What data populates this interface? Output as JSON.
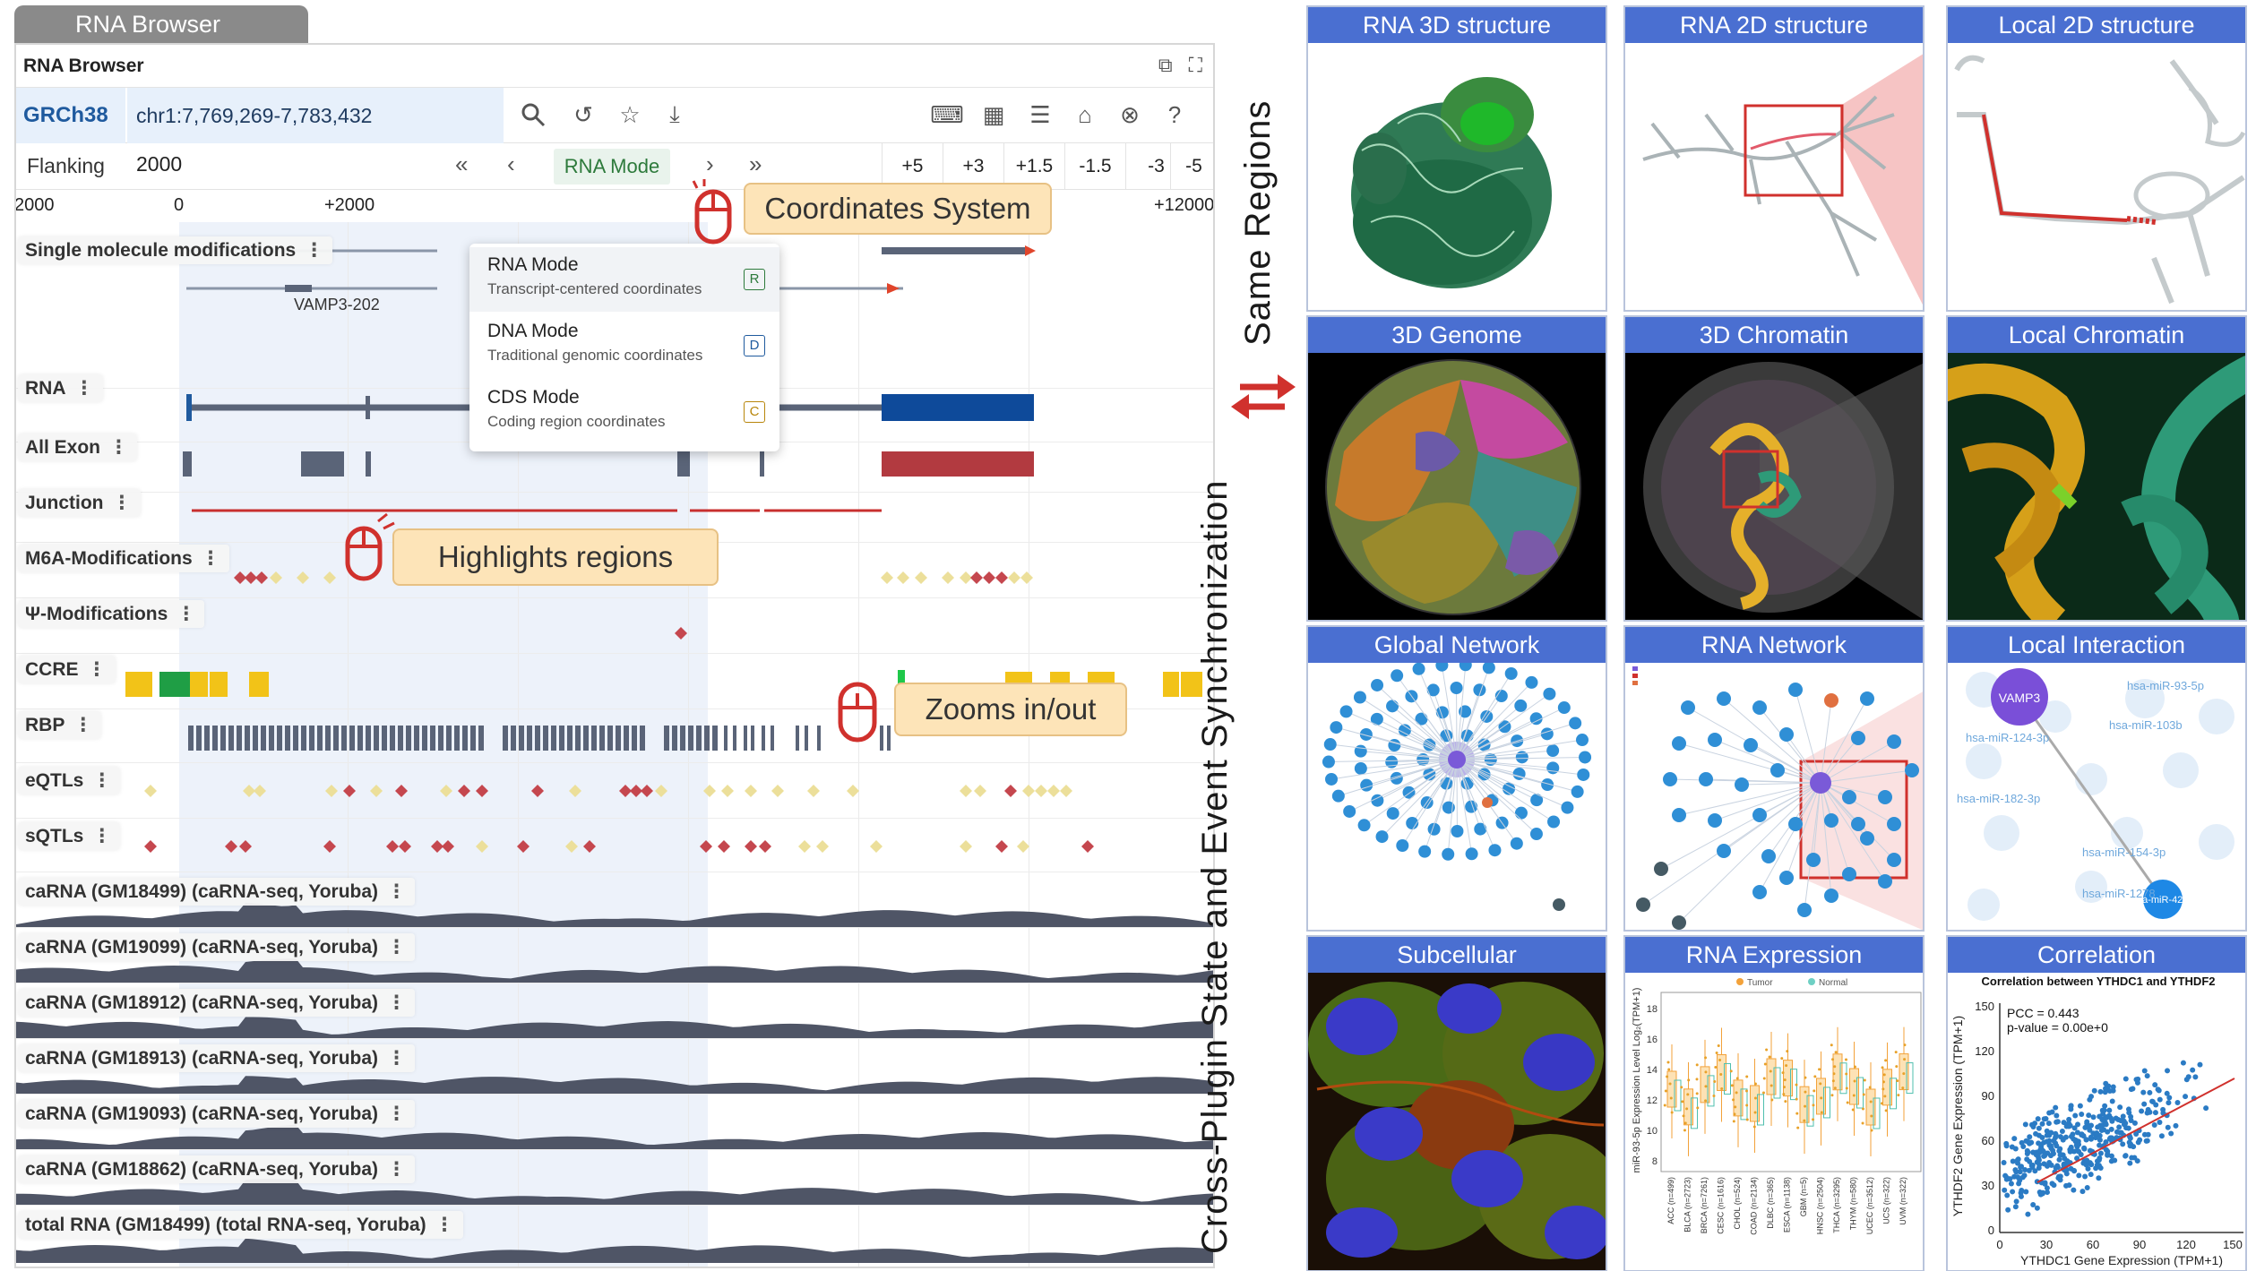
{
  "browser": {
    "tab_title": "RNA Browser",
    "window_title": "RNA Browser",
    "genome": "GRCh38",
    "coordinates": "chr1:7,769,269-7,783,432",
    "flanking_label": "Flanking",
    "flanking_value": "2000",
    "mode": "RNA Mode",
    "steps": [
      "+5",
      "+3",
      "+1.5",
      "-1.5",
      "-3",
      "-5"
    ],
    "ruler": [
      "2000",
      "0",
      "+2000",
      "+12000"
    ],
    "transcript_label": "VAMP3-202"
  },
  "mode_menu": [
    {
      "title": "RNA Mode",
      "subtitle": "Transcript-centered coordinates",
      "key": "R"
    },
    {
      "title": "DNA Mode",
      "subtitle": "Traditional genomic coordinates",
      "key": "D"
    },
    {
      "title": "CDS Mode",
      "subtitle": "Coding region coordinates",
      "key": "C"
    }
  ],
  "tracks": [
    "Single molecule modifications",
    "RNA",
    "All Exon",
    "Junction",
    "M6A-Modifications",
    "Ψ-Modifications",
    "CCRE",
    "RBP",
    "eQTLs",
    "sQTLs",
    "caRNA (GM18499) (caRNA-seq, Yoruba)",
    "caRNA (GM19099) (caRNA-seq, Yoruba)",
    "caRNA (GM18912) (caRNA-seq, Yoruba)",
    "caRNA (GM18913) (caRNA-seq, Yoruba)",
    "caRNA (GM19093) (caRNA-seq, Yoruba)",
    "caRNA (GM18862) (caRNA-seq, Yoruba)",
    "total RNA (GM18499) (total RNA-seq, Yoruba)"
  ],
  "callouts": {
    "coords": "Coordinates System",
    "highlight": "Highlights regions",
    "zoom": "Zooms in/out"
  },
  "sync_text": "Cross-Plugin State and Event Synchronization",
  "same_regions": "Same Regions",
  "panels": [
    "RNA 3D structure",
    "RNA 2D structure",
    "Local 2D structure",
    "3D Genome",
    "3D Chromatin",
    "Local Chromatin",
    "Global Network",
    "RNA Network",
    "Local Interaction",
    "Subcellular",
    "RNA Expression",
    "Correlation"
  ],
  "network_labels": [
    "VAMP3",
    "hsa-miR-4262",
    "hsa-miR-93-5p",
    "hsa-miR-103b",
    "hsa-miR-124-3p",
    "hsa-miR-1278",
    "hsa-miR-182-3p",
    "hsa-miR-154-3p"
  ],
  "expression": {
    "legend": [
      "Tumor",
      "Normal"
    ],
    "ylabel": "miR-93-5p Expression Level Log₂(TPM+1)",
    "yticks": [
      "18",
      "16",
      "14",
      "12",
      "10",
      "8"
    ],
    "categories": [
      "ACC (n=499)",
      "BLCA (n=2723)",
      "BRCA (n=7261)",
      "CESC (n=1616)",
      "CHOL (n=524)",
      "COAD (n=2134)",
      "DLBC (n=365)",
      "ESCA (n=1138)",
      "GBM (n=5)",
      "HNSC (n=2504)",
      "THCA (n=3295)",
      "THYM (n=580)",
      "UCEC (n=3512)",
      "UCS (n=322)",
      "UVM (n=322)"
    ]
  },
  "correlation": {
    "title": "Correlation between YTHDC1 and YTHDF2",
    "pcc": "PCC = 0.443",
    "pvalue": "p-value = 0.00e+0",
    "xlabel": "YTHDC1 Gene Expression (TPM+1)",
    "ylabel": "YTHDF2 Gene Expression (TPM+1)",
    "xticks": [
      "0",
      "30",
      "60",
      "90",
      "120",
      "150"
    ],
    "yticks": [
      "150",
      "120",
      "90",
      "60",
      "30",
      "0"
    ]
  }
}
